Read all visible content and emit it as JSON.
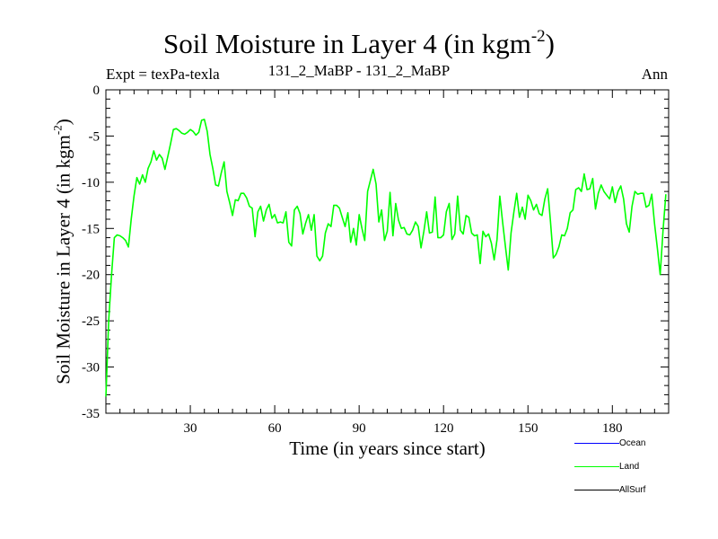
{
  "header": {
    "title": "Soil Moisture in Layer 4 (in kgm",
    "title_sup": "-2",
    "title_close": ")",
    "expt": "Expt = texPa-texla",
    "subtitle": "131_2_MaBP - 131_2_MaBP",
    "period": "Ann"
  },
  "chart_data": {
    "type": "line",
    "title": "Soil Moisture in Layer 4 (in kgm-2)",
    "xlabel": "Time (in years since start)",
    "ylabel": "Soil Moisture in Layer 4 (in kgm-2)",
    "ylabel_main": "Soil Moisture in Layer 4 (in kgm",
    "ylabel_sup": "-2",
    "ylabel_close": ")",
    "xlim": [
      0,
      200
    ],
    "ylim": [
      -35,
      0
    ],
    "xticks": [
      30,
      60,
      90,
      120,
      150,
      180
    ],
    "yticks": [
      0,
      -5,
      -10,
      -15,
      -20,
      -25,
      -30,
      -35
    ],
    "series": [
      {
        "name": "Ocean",
        "color": "#0000ff",
        "values": []
      },
      {
        "name": "Land",
        "color": "#00ff00",
        "x_start": 0,
        "x_step": 1,
        "values": [
          -33.2,
          -25.0,
          -20.0,
          -16.0,
          -15.7,
          -15.8,
          -16.0,
          -16.3,
          -17.0,
          -14.0,
          -11.5,
          -9.5,
          -10.2,
          -9.2,
          -10.0,
          -8.5,
          -7.8,
          -6.6,
          -7.6,
          -7.0,
          -7.4,
          -8.6,
          -7.2,
          -5.8,
          -4.3,
          -4.2,
          -4.4,
          -4.7,
          -4.8,
          -4.6,
          -4.3,
          -4.5,
          -4.9,
          -4.6,
          -3.3,
          -3.2,
          -4.5,
          -7.0,
          -8.5,
          -10.3,
          -10.4,
          -9.0,
          -7.8,
          -11.0,
          -12.2,
          -13.6,
          -11.9,
          -12.0,
          -11.2,
          -11.2,
          -11.7,
          -12.6,
          -12.8,
          -15.9,
          -13.2,
          -12.6,
          -14.2,
          -13.0,
          -12.4,
          -13.9,
          -13.5,
          -14.4,
          -14.3,
          -14.4,
          -13.2,
          -16.5,
          -16.9,
          -13.0,
          -12.6,
          -13.4,
          -15.6,
          -14.4,
          -13.5,
          -15.2,
          -13.5,
          -18.0,
          -18.5,
          -18.0,
          -15.5,
          -14.5,
          -14.8,
          -12.5,
          -12.5,
          -12.8,
          -13.8,
          -14.8,
          -13.3,
          -16.5,
          -15.0,
          -16.8,
          -13.5,
          -15.0,
          -16.3,
          -11.0,
          -9.8,
          -8.6,
          -10.2,
          -14.3,
          -13.0,
          -16.3,
          -15.3,
          -11.1,
          -15.8,
          -12.3,
          -14.1,
          -15.0,
          -14.9,
          -15.6,
          -15.7,
          -15.2,
          -14.3,
          -14.8,
          -17.1,
          -15.3,
          -13.2,
          -15.5,
          -15.4,
          -11.6,
          -16.0,
          -16.0,
          -15.7,
          -13.2,
          -12.3,
          -16.2,
          -15.6,
          -11.5,
          -15.2,
          -15.6,
          -13.6,
          -13.8,
          -15.5,
          -15.8,
          -15.7,
          -18.8,
          -15.3,
          -15.9,
          -15.6,
          -16.6,
          -18.4,
          -16.2,
          -11.5,
          -14.3,
          -17.0,
          -19.5,
          -15.5,
          -13.2,
          -11.2,
          -13.8,
          -12.7,
          -14.0,
          -11.4,
          -12.0,
          -13.0,
          -12.4,
          -13.4,
          -13.6,
          -11.8,
          -10.7,
          -14.2,
          -18.2,
          -17.8,
          -17.0,
          -15.7,
          -15.8,
          -15.0,
          -13.3,
          -13.0,
          -10.8,
          -10.6,
          -11.0,
          -9.1,
          -10.8,
          -10.7,
          -9.6,
          -12.9,
          -11.2,
          -10.3,
          -11.0,
          -11.4,
          -11.8,
          -10.5,
          -12.2,
          -11.0,
          -10.4,
          -11.8,
          -14.5,
          -15.4,
          -12.6,
          -11.0,
          -11.3,
          -11.2,
          -11.2,
          -12.7,
          -12.5,
          -11.3,
          -14.5,
          -17.2,
          -20.0,
          -15.3,
          -11.3
        ]
      },
      {
        "name": "AllSurf",
        "color": "#000000",
        "values": []
      }
    ]
  }
}
